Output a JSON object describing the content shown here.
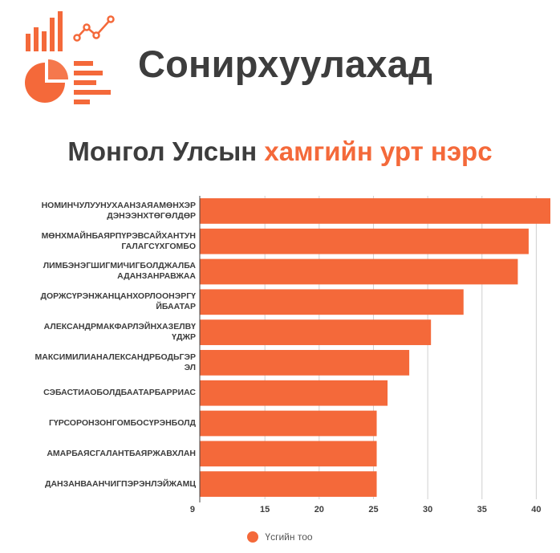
{
  "header": {
    "title": "Сонирхуулахад"
  },
  "chart_title": {
    "part1": "Монгол Улсын",
    "part2": "хамгийн урт нэрс"
  },
  "colors": {
    "accent": "#f4693a",
    "text": "#3d3d3d"
  },
  "chart_data": {
    "type": "bar",
    "orientation": "horizontal",
    "categories": [
      "НОМИНЧУЛУУНУХААНЗАЯАМӨНХЭР ДЭНЭЭНХТӨГӨЛДӨР",
      "МӨНХМАЙНБАЯРПҮРЭВСАЙХАНТУН ГАЛАГСҮХГОМБО",
      "ЛИМБЭНЭГШИГМИЧИГБОЛДЖАЛБА АДАНЗАНРАВЖАА",
      "ДОРЖСҮРЭНЖАНЦАНХОРЛООНЭРГҮ ЙБААТАР",
      "АЛЕКСАНДРМАКФАРЛЭЙНХАЗЕЛВҮ ҮДЖР",
      "МАКСИМИЛИАНАЛЕКСАНДРБОДЬГЭР ЭЛ",
      "СЭБАСТИАОБОЛДБААТАРБАРРИАС",
      "ГҮРСОРОНЗОНГОМБОСҮРЭНБОЛД",
      "АМАРБАЯСГАЛАНТБАЯРЖАВХЛАН",
      "ДАНЗАНВААНЧИГПЭРЭНЛЭЙЖАМЦ"
    ],
    "series": [
      {
        "name": "Үсгийн тоо",
        "values": [
          41.3,
          39.3,
          38.3,
          33.3,
          30.3,
          28.3,
          26.3,
          25.3,
          25.3,
          25.3
        ]
      }
    ],
    "xlim": [
      9,
      41.3
    ],
    "xticks": [
      9,
      15,
      20,
      25,
      30,
      35,
      40
    ],
    "grid": true,
    "legend_position": "bottom"
  }
}
